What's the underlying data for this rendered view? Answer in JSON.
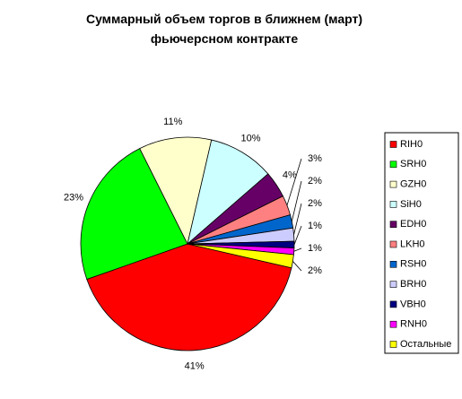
{
  "chart_data": {
    "type": "pie",
    "title": "Суммарный объем торгов в ближнем (март) фьючерсном контракте",
    "categories": [
      "RIH0",
      "SRH0",
      "GZH0",
      "SiH0",
      "EDH0",
      "LKH0",
      "RSH0",
      "BRH0",
      "VBH0",
      "RNH0",
      "Остальные"
    ],
    "values": [
      41,
      23,
      11,
      10,
      4,
      3,
      2,
      2,
      1,
      1,
      2
    ],
    "value_labels": [
      "41%",
      "23%",
      "11%",
      "10%",
      "4%",
      "3%",
      "2%",
      "2%",
      "1%",
      "1%",
      "2%"
    ],
    "colors": [
      "#ff0000",
      "#00ff00",
      "#ffffcc",
      "#ccffff",
      "#660066",
      "#ff8080",
      "#0066cc",
      "#ccccff",
      "#000080",
      "#ff00ff",
      "#ffff00"
    ],
    "legend": "right"
  }
}
